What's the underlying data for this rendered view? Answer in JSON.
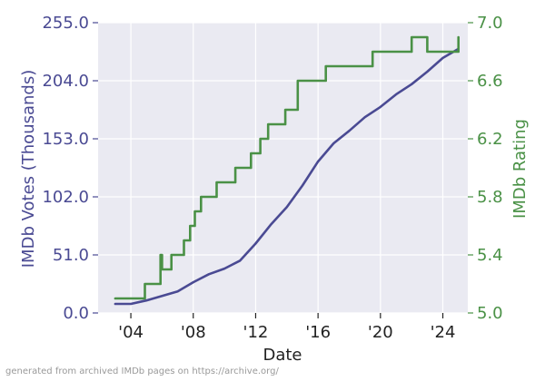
{
  "chart_data": {
    "type": "line",
    "xlabel": "Date",
    "ylabel_left": "IMDb Votes (Thousands)",
    "ylabel_right": "IMDb Rating",
    "x_ticks": [
      "'04",
      "'08",
      "'12",
      "'16",
      "'20",
      "'24"
    ],
    "x_tick_values": [
      2004,
      2008,
      2012,
      2016,
      2020,
      2024
    ],
    "xlim": [
      2001.9,
      2025.6
    ],
    "ylim_left": [
      0,
      255
    ],
    "yticks_left": [
      "0.0",
      "51.0",
      "102.0",
      "153.0",
      "204.0",
      "255.0"
    ],
    "yticks_left_values": [
      0,
      51,
      102,
      153,
      204,
      255
    ],
    "ylim_right": [
      5.0,
      7.0
    ],
    "yticks_right": [
      "5.0",
      "5.4",
      "5.8",
      "6.2",
      "6.6",
      "7.0"
    ],
    "yticks_right_values": [
      5.0,
      5.4,
      5.8,
      6.2,
      6.6,
      7.0
    ],
    "grid": true,
    "series": [
      {
        "axis": "left",
        "color": "#4a4a93",
        "x": [
          2003.0,
          2004.0,
          2005.0,
          2006.0,
          2007.0,
          2008.0,
          2009.0,
          2010.0,
          2011.0,
          2012.0,
          2013.0,
          2014.0,
          2015.0,
          2016.0,
          2017.0,
          2018.0,
          2019.0,
          2020.0,
          2021.0,
          2022.0,
          2023.0,
          2024.0,
          2025.0
        ],
        "y": [
          8,
          8,
          11,
          15,
          19,
          27,
          34,
          39,
          46,
          61,
          78,
          93,
          112,
          133,
          149,
          160,
          172,
          181,
          192,
          201,
          212,
          224,
          232
        ]
      },
      {
        "axis": "right",
        "color": "#4a9146",
        "type": "step",
        "x": [
          2003.0,
          2004.9,
          2005.9,
          2006.0,
          2006.6,
          2007.4,
          2007.8,
          2008.1,
          2008.5,
          2009.5,
          2010.7,
          2011.7,
          2012.3,
          2012.8,
          2013.9,
          2014.7,
          2016.5,
          2019.5,
          2022.0,
          2023.0,
          2025.0
        ],
        "y": [
          5.1,
          5.2,
          5.4,
          5.3,
          5.4,
          5.5,
          5.6,
          5.7,
          5.8,
          5.9,
          6.0,
          6.1,
          6.2,
          6.3,
          6.4,
          6.6,
          6.7,
          6.8,
          6.9,
          6.8,
          6.9
        ]
      }
    ]
  },
  "styles": {
    "plot_bg": "#eaeaf2",
    "grid_color": "#ffffff",
    "left_axis_color": "#4a4a93",
    "right_axis_color": "#4a9146",
    "bottom_axis_color": "#222222"
  },
  "footer": "generated from archived IMDb pages on https://archive.org/"
}
